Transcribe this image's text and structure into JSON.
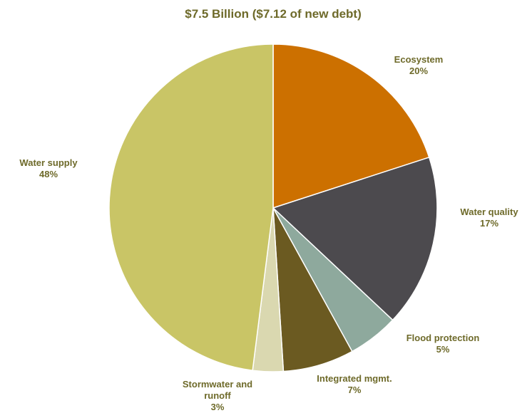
{
  "chart_data": {
    "type": "pie",
    "title": "$7.5 Billion ($7.12 of new debt)",
    "start_angle_deg": 0,
    "direction": "clockwise",
    "slices": [
      {
        "lines": [
          "Ecosystem",
          "20%"
        ],
        "value": 20,
        "color": "#cc7000"
      },
      {
        "lines": [
          "Water quality",
          "17%"
        ],
        "value": 17,
        "color": "#4c4a4e"
      },
      {
        "lines": [
          "Flood protection",
          "5%"
        ],
        "value": 5,
        "color": "#8ea99d"
      },
      {
        "lines": [
          "Integrated mgmt.",
          "7%"
        ],
        "value": 7,
        "color": "#6b5a21"
      },
      {
        "lines": [
          "Stormwater and",
          "runoff",
          "3%"
        ],
        "value": 3,
        "color": "#dad8b0"
      },
      {
        "lines": [
          "Water supply",
          "48%"
        ],
        "value": 48,
        "color": "#c9c566"
      }
    ]
  }
}
